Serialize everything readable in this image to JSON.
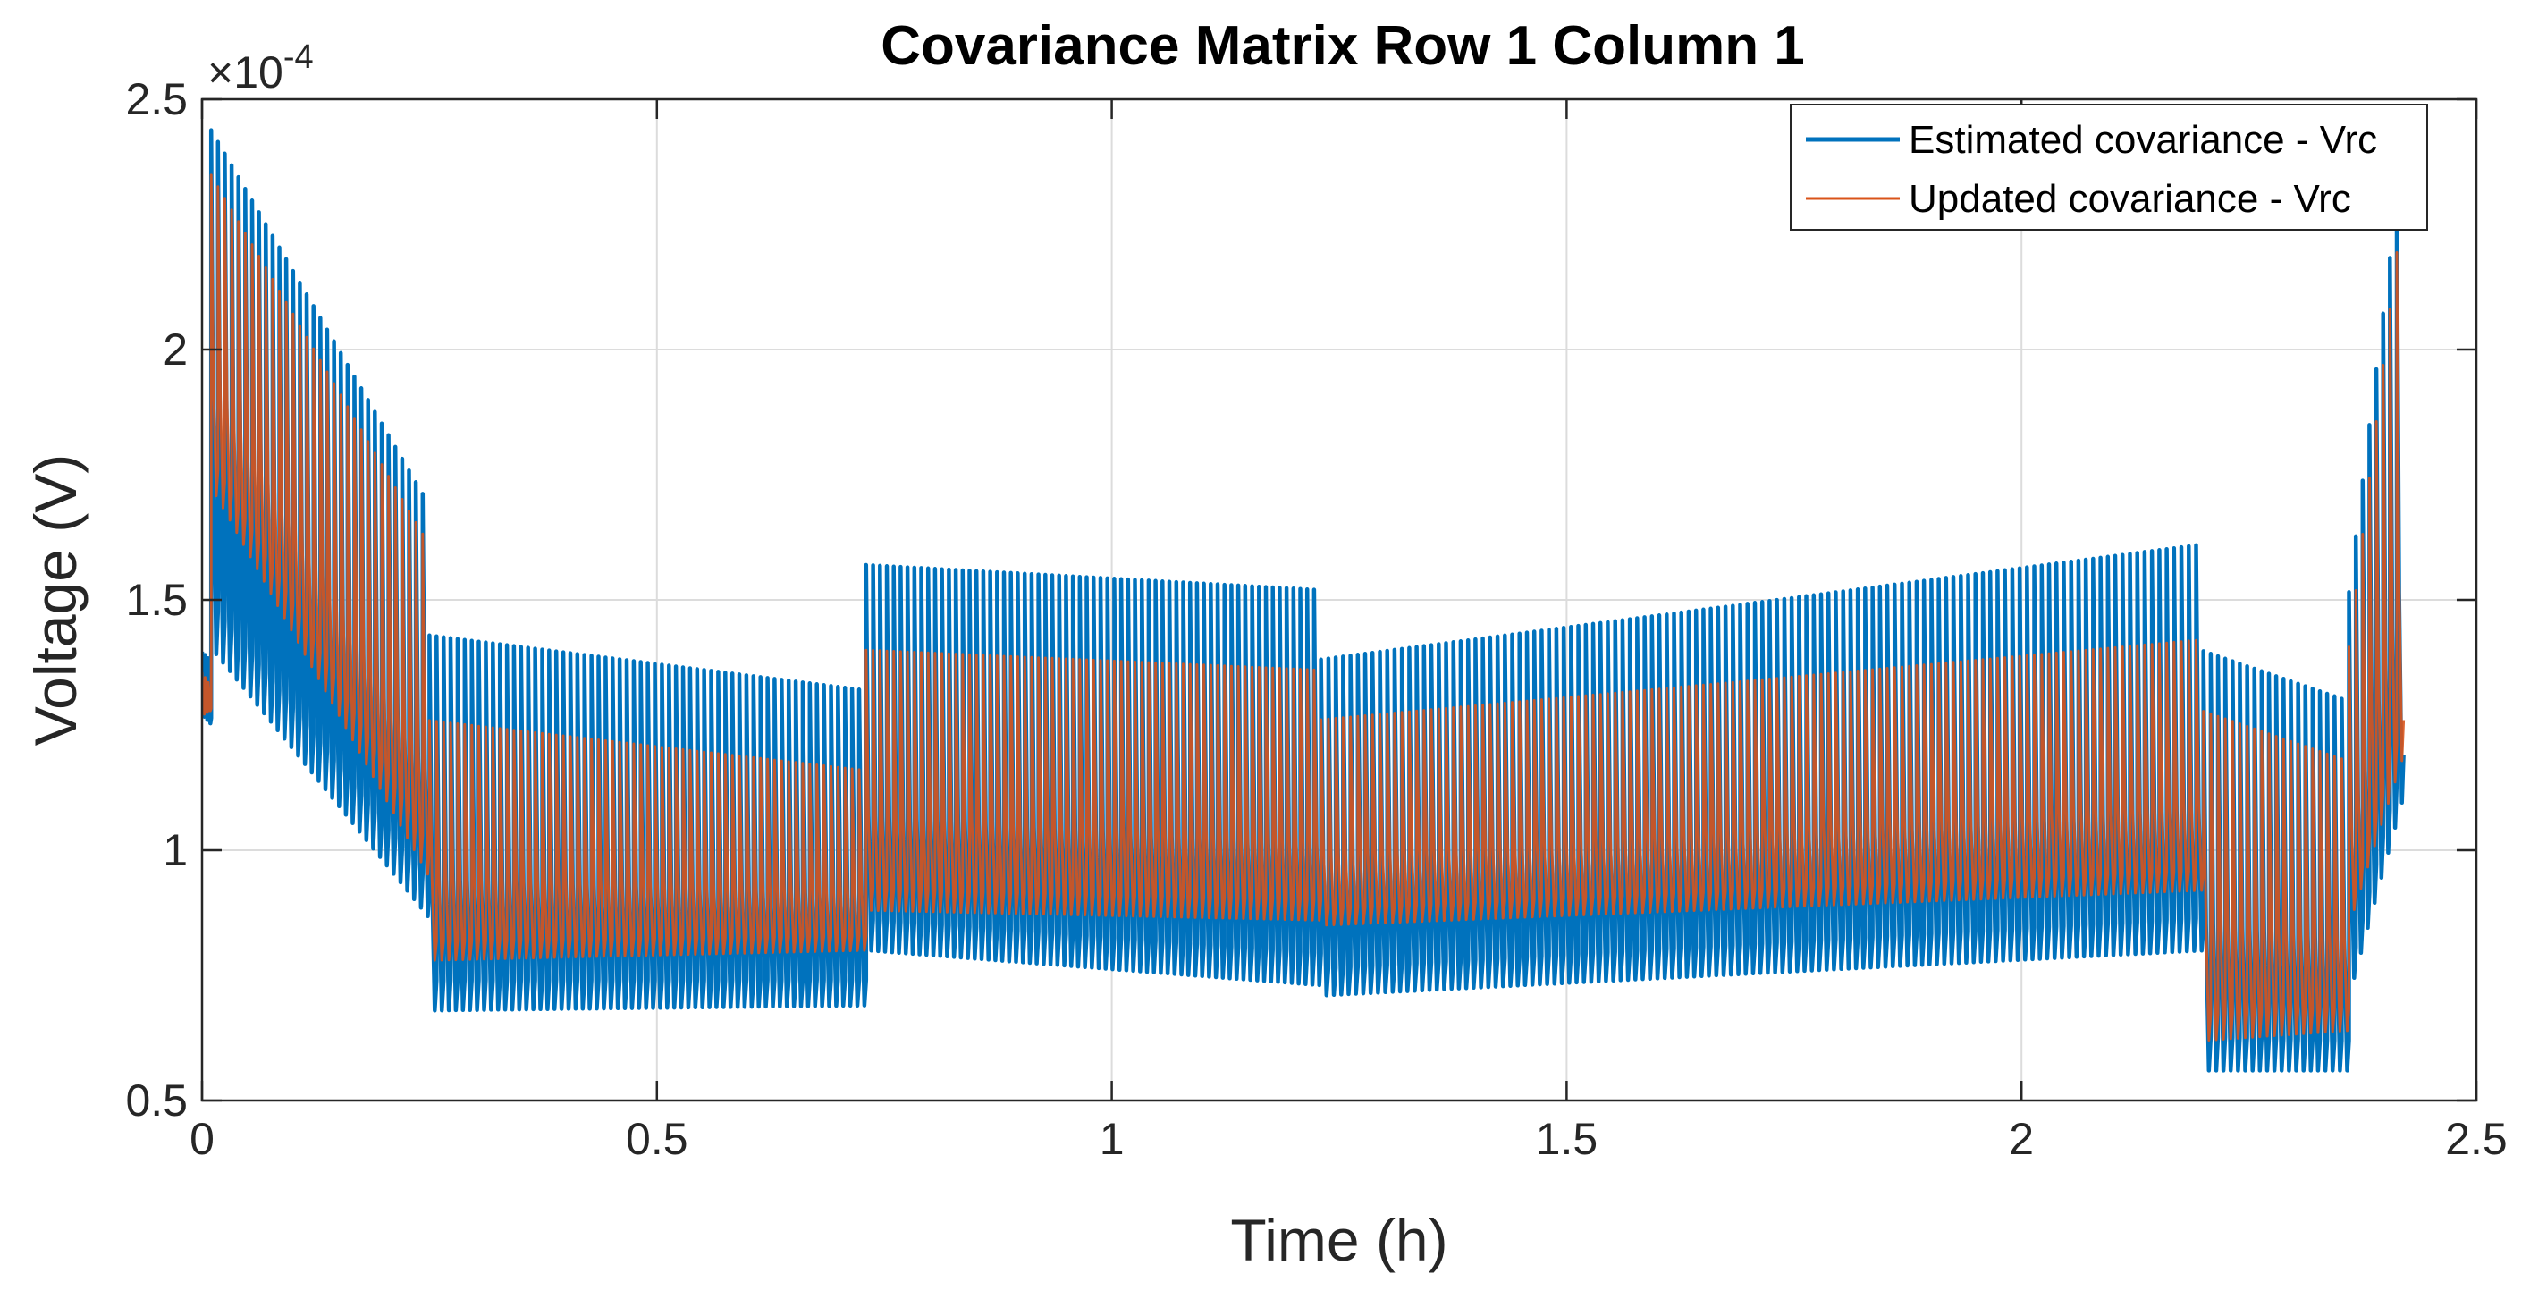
{
  "chart_data": {
    "type": "line",
    "title": "Covariance Matrix Row 1 Column 1",
    "xlabel": "Time (h)",
    "ylabel": "Voltage (V)",
    "y_exponent_label": "×10",
    "y_exponent_power": "-4",
    "xlim": [
      0,
      2.5
    ],
    "ylim": [
      0.5,
      2.5
    ],
    "y_scale_note": "values scaled by 1e-4",
    "grid": true,
    "legend_position": "top-right",
    "x_ticks": [
      0,
      0.5,
      1,
      1.5,
      2,
      2.5
    ],
    "x_tick_labels": [
      "0",
      "0.5",
      "1",
      "1.5",
      "2",
      "2.5"
    ],
    "y_ticks": [
      0.5,
      1,
      1.5,
      2,
      2.5
    ],
    "y_tick_labels": [
      "0.5",
      "1",
      "1.5",
      "2",
      "2.5"
    ],
    "segment_note": "Each segment: [t_start, t_end, number_of_oscillations, upper_envelope_start, upper_envelope_end, lower_envelope_start, lower_envelope_end] in (h, h, count, x1e-4 V...)",
    "series": [
      {
        "name": "Estimated covariance - Vrc",
        "color": "#0072BD",
        "segments": [
          [
            0.0,
            0.01,
            3,
            1.4,
            1.38,
            1.27,
            1.25
          ],
          [
            0.01,
            0.25,
            32,
            2.45,
            1.7,
            1.4,
            0.86
          ],
          [
            0.25,
            0.73,
            62,
            1.43,
            1.32,
            0.68,
            0.69
          ],
          [
            0.73,
            1.23,
            66,
            1.57,
            1.52,
            0.8,
            0.73
          ],
          [
            1.23,
            2.2,
            120,
            1.38,
            1.61,
            0.71,
            0.8
          ],
          [
            2.2,
            2.36,
            20,
            1.4,
            1.3,
            0.56,
            0.56
          ],
          [
            2.36,
            2.42,
            8,
            1.46,
            2.35,
            0.72,
            1.12
          ]
        ]
      },
      {
        "name": "Updated covariance - Vrc",
        "color": "#D95319",
        "segments": [
          [
            0.0,
            0.01,
            3,
            1.36,
            1.33,
            1.27,
            1.28
          ],
          [
            0.01,
            0.25,
            32,
            2.36,
            1.62,
            1.72,
            0.94
          ],
          [
            0.25,
            0.73,
            62,
            1.26,
            1.16,
            0.78,
            0.8
          ],
          [
            0.73,
            1.23,
            66,
            1.4,
            1.36,
            0.88,
            0.86
          ],
          [
            1.23,
            2.2,
            120,
            1.26,
            1.42,
            0.85,
            0.92
          ],
          [
            2.2,
            2.36,
            20,
            1.28,
            1.18,
            0.62,
            0.64
          ],
          [
            2.36,
            2.42,
            8,
            1.35,
            2.25,
            0.86,
            1.2
          ]
        ]
      }
    ]
  }
}
